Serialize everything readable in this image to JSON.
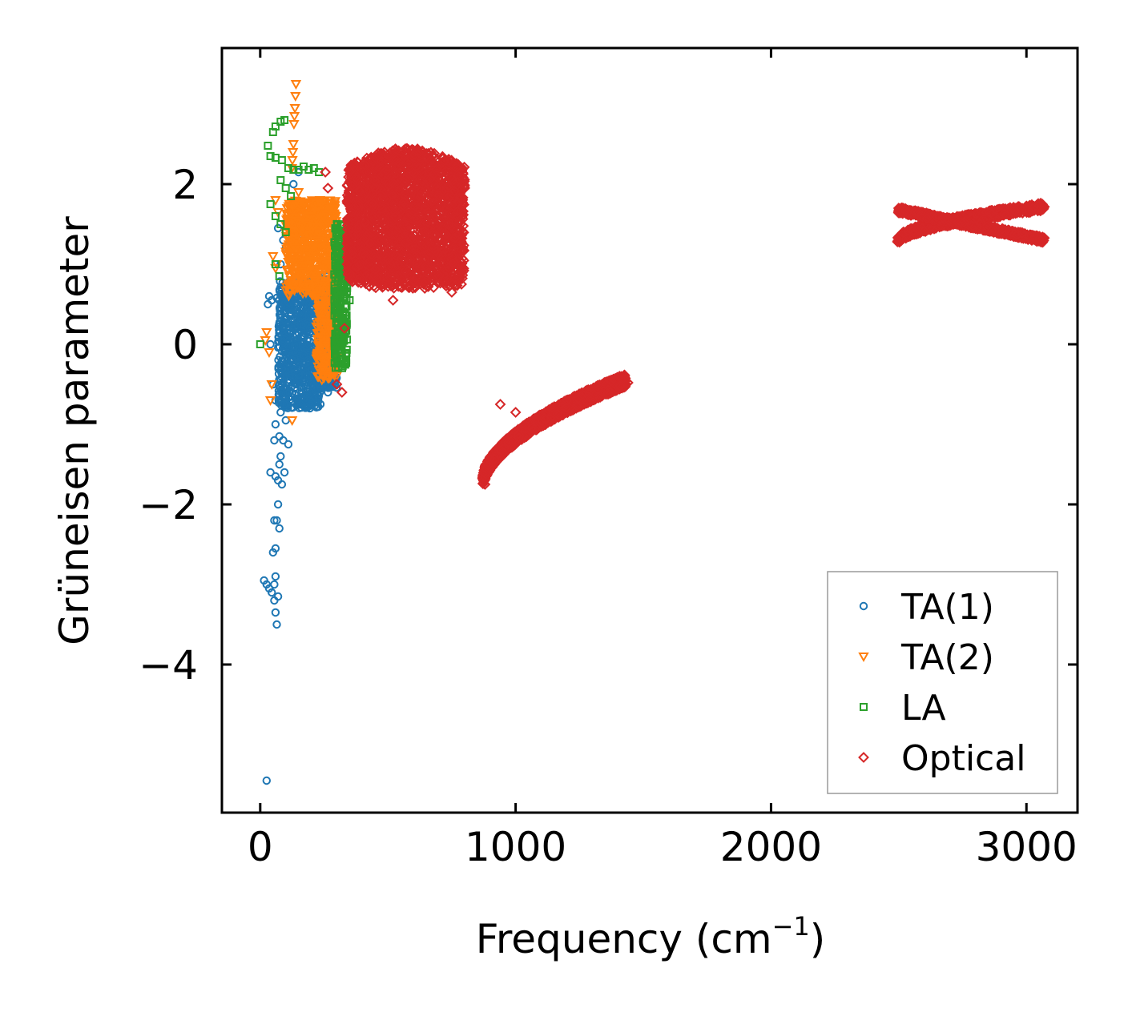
{
  "chart_data": {
    "type": "scatter",
    "title": "",
    "xlabel": "Frequency (cm",
    "xlabel_superscript": "−1",
    "xlabel_suffix": ")",
    "ylabel": "Grüneisen parameter",
    "xlim": [
      -150,
      3200
    ],
    "ylim": [
      -5.85,
      3.7
    ],
    "xticks": [
      0,
      1000,
      2000,
      3000
    ],
    "xtick_labels": [
      "0",
      "1000",
      "2000",
      "3000"
    ],
    "yticks": [
      -4,
      -2,
      0,
      2
    ],
    "ytick_labels": [
      "−4",
      "−2",
      "0",
      "2"
    ],
    "grid": false,
    "legend_position": "lower-right",
    "series": [
      {
        "name": "TA(1)",
        "marker": "circle",
        "color": "#1f77b4",
        "points": [
          [
            25,
            -5.45
          ],
          [
            15,
            -2.95
          ],
          [
            25,
            -3.0
          ],
          [
            35,
            -3.05
          ],
          [
            45,
            -3.1
          ],
          [
            55,
            -3.2
          ],
          [
            60,
            -3.35
          ],
          [
            65,
            -3.5
          ],
          [
            70,
            -3.15
          ],
          [
            55,
            -3.0
          ],
          [
            60,
            -2.9
          ],
          [
            50,
            -2.6
          ],
          [
            60,
            -2.55
          ],
          [
            55,
            -2.2
          ],
          [
            65,
            -2.2
          ],
          [
            75,
            -2.3
          ],
          [
            70,
            -2.0
          ],
          [
            40,
            -1.6
          ],
          [
            60,
            -1.65
          ],
          [
            70,
            -1.7
          ],
          [
            85,
            -1.75
          ],
          [
            75,
            -1.5
          ],
          [
            80,
            -1.4
          ],
          [
            95,
            -1.6
          ],
          [
            55,
            -1.2
          ],
          [
            75,
            -1.15
          ],
          [
            90,
            -1.2
          ],
          [
            110,
            -1.25
          ],
          [
            60,
            -1.0
          ],
          [
            80,
            -0.85
          ],
          [
            100,
            -0.95
          ],
          [
            30,
            0.5
          ],
          [
            35,
            0.6
          ],
          [
            45,
            0.55
          ],
          [
            65,
            0.58
          ],
          [
            40,
            0.0
          ],
          [
            50,
            -0.5
          ],
          [
            60,
            -0.7
          ],
          [
            70,
            1.45
          ],
          [
            90,
            1.3
          ],
          [
            100,
            1.2
          ],
          [
            80,
            1.0
          ],
          [
            130,
            1.6
          ],
          [
            130,
            2.0
          ],
          [
            150,
            2.15
          ],
          [
            160,
            1.7
          ],
          [
            150,
            1.3
          ],
          [
            85,
            -0.3
          ],
          [
            95,
            0.1
          ],
          [
            105,
            0.5
          ],
          [
            115,
            -0.6
          ],
          [
            125,
            -0.2
          ],
          [
            135,
            0.3
          ],
          [
            145,
            0.7
          ],
          [
            155,
            -0.5
          ],
          [
            165,
            0.0
          ],
          [
            175,
            0.4
          ],
          [
            185,
            -0.4
          ],
          [
            195,
            0.2
          ],
          [
            205,
            0.6
          ],
          [
            215,
            -0.2
          ],
          [
            225,
            0.3
          ],
          [
            235,
            -0.5
          ],
          [
            245,
            0.1
          ],
          [
            255,
            0.5
          ],
          [
            265,
            -0.6
          ],
          [
            275,
            0.2
          ],
          [
            285,
            0.7
          ],
          [
            295,
            0.8
          ],
          [
            260,
            -0.3
          ],
          [
            240,
            0.65
          ]
        ],
        "dense_regions": [
          {
            "x_range": [
              70,
              240
            ],
            "y_range": [
              -0.8,
              0.8
            ]
          },
          {
            "x_range": [
              230,
              300
            ],
            "y_range": [
              -0.55,
              0.85
            ]
          }
        ]
      },
      {
        "name": "TA(2)",
        "marker": "triangle-down",
        "color": "#ff7f0e",
        "points": [
          [
            140,
            3.25
          ],
          [
            138,
            3.1
          ],
          [
            136,
            2.95
          ],
          [
            134,
            2.85
          ],
          [
            132,
            2.75
          ],
          [
            130,
            2.5
          ],
          [
            128,
            2.4
          ],
          [
            126,
            2.3
          ],
          [
            124,
            2.2
          ],
          [
            60,
            1.8
          ],
          [
            70,
            1.65
          ],
          [
            65,
            1.0
          ],
          [
            60,
            0.95
          ],
          [
            50,
            1.1
          ],
          [
            25,
            0.15
          ],
          [
            20,
            0.05
          ],
          [
            35,
            -0.1
          ],
          [
            45,
            -0.5
          ],
          [
            40,
            -0.7
          ],
          [
            125,
            -0.95
          ],
          [
            150,
            1.9
          ],
          [
            170,
            1.75
          ],
          [
            190,
            1.6
          ]
        ],
        "dense_regions": [
          {
            "x_range": [
              100,
              300
            ],
            "y_range": [
              0.6,
              1.8
            ]
          },
          {
            "x_range": [
              220,
              300
            ],
            "y_range": [
              -0.45,
              0.55
            ]
          }
        ]
      },
      {
        "name": "LA",
        "marker": "square",
        "color": "#2ca02c",
        "points": [
          [
            0,
            0.0
          ],
          [
            30,
            2.48
          ],
          [
            50,
            2.65
          ],
          [
            60,
            2.72
          ],
          [
            80,
            2.78
          ],
          [
            95,
            2.8
          ],
          [
            40,
            2.35
          ],
          [
            60,
            2.33
          ],
          [
            85,
            2.3
          ],
          [
            110,
            2.2
          ],
          [
            130,
            2.18
          ],
          [
            150,
            2.18
          ],
          [
            170,
            2.22
          ],
          [
            190,
            2.18
          ],
          [
            210,
            2.2
          ],
          [
            230,
            2.15
          ],
          [
            80,
            2.05
          ],
          [
            100,
            1.95
          ],
          [
            120,
            1.85
          ],
          [
            40,
            1.75
          ],
          [
            60,
            1.6
          ],
          [
            80,
            1.5
          ],
          [
            100,
            1.4
          ],
          [
            60,
            1.0
          ],
          [
            75,
            0.85
          ],
          [
            300,
            1.5
          ],
          [
            310,
            1.3
          ],
          [
            320,
            1.1
          ],
          [
            330,
            0.9
          ],
          [
            340,
            0.7
          ],
          [
            350,
            0.55
          ]
        ],
        "dense_regions": [
          {
            "x_range": [
              290,
              340
            ],
            "y_range": [
              -0.3,
              1.5
            ]
          }
        ]
      },
      {
        "name": "Optical",
        "marker": "diamond",
        "color": "#d62728",
        "points": [
          [
            255,
            2.15
          ],
          [
            265,
            1.95
          ],
          [
            300,
            -0.5
          ],
          [
            320,
            -0.6
          ],
          [
            330,
            0.2
          ],
          [
            340,
            1.0
          ],
          [
            520,
            0.55
          ],
          [
            640,
            0.75
          ],
          [
            700,
            0.85
          ],
          [
            750,
            0.65
          ],
          [
            940,
            -0.75
          ],
          [
            1000,
            -0.85
          ],
          [
            880,
            -1.75
          ],
          [
            1440,
            -0.48
          ]
        ],
        "dense_regions": [
          {
            "x_range": [
              340,
              800
            ],
            "y_range": [
              0.6,
              2.45
            ],
            "shape": "blob"
          },
          {
            "x_range": [
              870,
              1430
            ],
            "y_range": [
              -1.75,
              -0.45
            ],
            "shape": "band"
          },
          {
            "x_range": [
              2495,
              3070
            ],
            "y_range": [
              1.28,
              1.72
            ],
            "shape": "band"
          }
        ]
      }
    ]
  }
}
